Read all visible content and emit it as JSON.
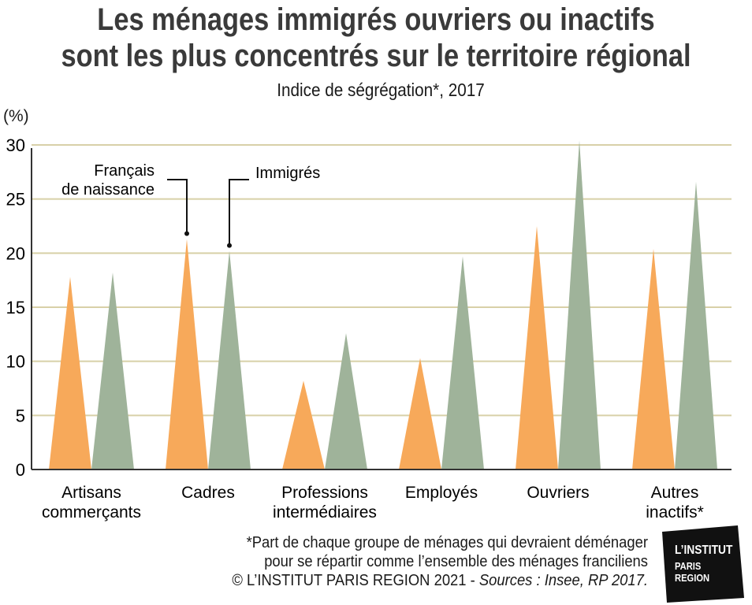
{
  "title_line1": "Les ménages immigrés ouvriers ou inactifs",
  "title_line2": "sont les plus concentrés sur le territoire régional",
  "subtitle": "Indice de ségrégation*, 2017",
  "unit_label": "(%)",
  "annotations": {
    "francais": [
      "Français",
      "de naissance"
    ],
    "immigres": "Immigrés"
  },
  "footnote": {
    "line1": "*Part de chaque groupe de ménages qui devraient déménager",
    "line2": "pour se répartir comme l’ensemble des ménages franciliens",
    "line3_plain": "© L’INSTITUT PARIS REGION 2021 - ",
    "line3_italic": "Sources : Insee, RP 2017."
  },
  "logo": {
    "line1": "L’INSTITUT",
    "line2": "PARIS",
    "line3": "REGION"
  },
  "colors": {
    "francais": "#f7a95a",
    "immigres": "#9fb39a",
    "grid": "#d8d0a8",
    "axis": "#333333",
    "logo_bg": "#111111"
  },
  "chart_data": {
    "type": "bar",
    "shape": "triangle",
    "categories": [
      [
        "Artisans",
        "commerçants"
      ],
      [
        "Cadres"
      ],
      [
        "Professions",
        "intermédiaires"
      ],
      [
        "Employés"
      ],
      [
        "Ouvriers"
      ],
      [
        "Autres",
        "inactifs*"
      ]
    ],
    "series": [
      {
        "name": "Français de naissance",
        "values": [
          17.8,
          21.3,
          8.2,
          10.3,
          22.5,
          20.4
        ]
      },
      {
        "name": "Immigrés",
        "values": [
          18.2,
          20.2,
          12.6,
          19.7,
          30.4,
          26.6
        ]
      }
    ],
    "ylim": [
      0,
      30
    ],
    "yticks": [
      0,
      5,
      10,
      15,
      20,
      25,
      30
    ],
    "grid": true
  }
}
